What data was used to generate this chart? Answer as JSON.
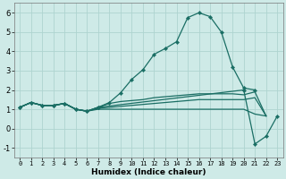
{
  "xlabel": "Humidex (Indice chaleur)",
  "background_color": "#ceeae7",
  "grid_color": "#aed4d0",
  "line_color": "#1a6e64",
  "xlim": [
    -0.5,
    23.5
  ],
  "ylim": [
    -1.5,
    6.5
  ],
  "xticks": [
    0,
    1,
    2,
    3,
    4,
    5,
    6,
    7,
    8,
    9,
    10,
    11,
    12,
    13,
    14,
    15,
    16,
    17,
    18,
    19,
    20,
    21,
    22,
    23
  ],
  "yticks": [
    -1,
    0,
    1,
    2,
    3,
    4,
    5,
    6
  ],
  "series": [
    {
      "x": [
        0,
        1,
        2,
        3,
        4,
        5,
        6,
        7,
        8,
        9,
        10,
        11,
        12,
        13,
        14,
        15,
        16,
        17,
        18,
        19,
        20,
        21
      ],
      "y": [
        1.1,
        1.35,
        1.2,
        1.2,
        1.3,
        1.0,
        0.9,
        1.1,
        1.35,
        1.85,
        2.55,
        3.05,
        3.85,
        4.15,
        4.5,
        5.75,
        6.0,
        5.8,
        5.0,
        3.2,
        2.1,
        2.0
      ],
      "marker": true
    },
    {
      "x": [
        0,
        1,
        2,
        3,
        4,
        5,
        6,
        7,
        20,
        21,
        22,
        23
      ],
      "y": [
        1.1,
        1.35,
        1.2,
        1.2,
        1.3,
        1.0,
        0.9,
        1.1,
        2.0,
        -0.8,
        -0.4,
        0.65
      ],
      "marker": true
    },
    {
      "x": [
        0,
        1,
        2,
        3,
        4,
        5,
        6,
        7,
        8,
        9,
        10,
        11,
        12,
        13,
        14,
        15,
        16,
        17,
        18,
        19,
        20,
        21,
        22
      ],
      "y": [
        1.1,
        1.35,
        1.2,
        1.2,
        1.3,
        1.0,
        0.9,
        1.1,
        1.3,
        1.4,
        1.45,
        1.5,
        1.6,
        1.65,
        1.7,
        1.75,
        1.8,
        1.8,
        1.8,
        1.8,
        1.75,
        1.9,
        0.65
      ],
      "marker": false
    },
    {
      "x": [
        0,
        1,
        2,
        3,
        4,
        5,
        6,
        7,
        8,
        9,
        10,
        11,
        12,
        13,
        14,
        15,
        16,
        17,
        18,
        19,
        20,
        21,
        22
      ],
      "y": [
        1.1,
        1.35,
        1.2,
        1.2,
        1.3,
        1.0,
        0.9,
        1.05,
        1.1,
        1.15,
        1.2,
        1.25,
        1.3,
        1.35,
        1.4,
        1.45,
        1.5,
        1.5,
        1.5,
        1.5,
        1.5,
        1.6,
        0.65
      ],
      "marker": false
    },
    {
      "x": [
        0,
        1,
        2,
        3,
        4,
        5,
        6,
        7,
        8,
        9,
        10,
        11,
        12,
        13,
        14,
        15,
        16,
        17,
        18,
        19,
        20,
        21,
        22
      ],
      "y": [
        1.1,
        1.35,
        1.2,
        1.2,
        1.3,
        1.0,
        0.9,
        1.0,
        1.0,
        1.0,
        1.0,
        1.0,
        1.0,
        1.0,
        1.0,
        1.0,
        1.0,
        1.0,
        1.0,
        1.0,
        1.0,
        0.75,
        0.65
      ],
      "marker": false
    }
  ]
}
